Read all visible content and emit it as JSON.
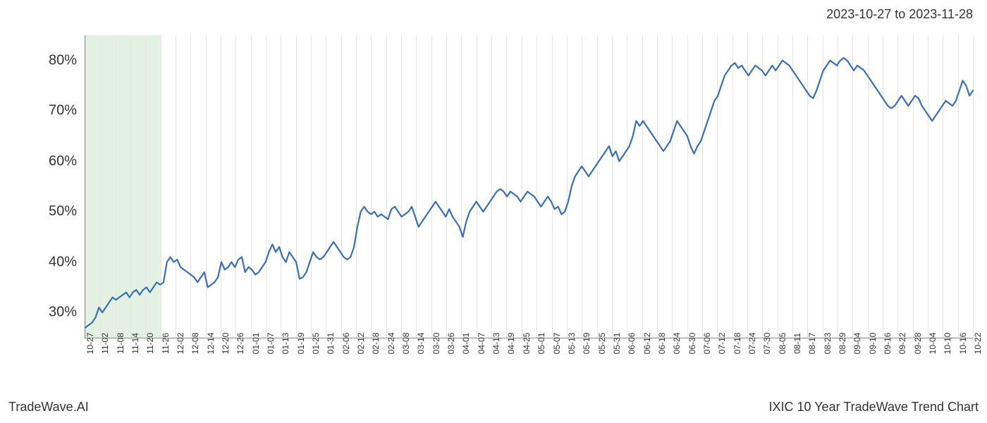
{
  "header": {
    "date_range": "2023-10-27 to 2023-11-28"
  },
  "footer": {
    "left": "TradeWave.AI",
    "right": "IXIC 10 Year TradeWave Trend Chart"
  },
  "chart": {
    "type": "line",
    "background_color": "#ffffff",
    "grid_color": "#e5e5e5",
    "axis_color": "#888888",
    "line_color": "#3a6fb0",
    "line_width": 2.2,
    "highlight_band": {
      "color": "rgba(144,200,144,0.25)",
      "x_start_index": 0,
      "x_end_index": 5
    },
    "ylim": [
      25,
      85
    ],
    "ytick_values": [
      30,
      40,
      50,
      60,
      70,
      80
    ],
    "ytick_labels": [
      "30%",
      "40%",
      "50%",
      "60%",
      "70%",
      "80%"
    ],
    "ytick_fontsize": 20,
    "xtick_labels": [
      "10-27",
      "11-02",
      "11-08",
      "11-14",
      "11-20",
      "11-26",
      "12-02",
      "12-08",
      "12-14",
      "12-20",
      "12-26",
      "01-01",
      "01-07",
      "01-13",
      "01-19",
      "01-25",
      "01-31",
      "02-06",
      "02-12",
      "02-18",
      "02-24",
      "03-08",
      "03-14",
      "03-20",
      "03-26",
      "04-01",
      "04-07",
      "04-13",
      "04-19",
      "04-25",
      "05-01",
      "05-07",
      "05-13",
      "05-19",
      "05-25",
      "05-31",
      "06-06",
      "06-12",
      "06-18",
      "06-24",
      "06-30",
      "07-06",
      "07-12",
      "07-18",
      "07-24",
      "07-30",
      "08-05",
      "08-11",
      "08-17",
      "08-23",
      "08-29",
      "09-04",
      "09-10",
      "09-16",
      "09-22",
      "09-28",
      "10-04",
      "10-10",
      "10-16",
      "10-22"
    ],
    "xtick_fontsize": 12,
    "xtick_rotation": -90,
    "series": {
      "values": [
        27,
        27.5,
        28,
        29,
        31,
        30,
        31,
        32,
        33,
        32.5,
        33,
        33.5,
        34,
        33,
        34,
        34.5,
        33.5,
        34.5,
        35,
        34,
        35,
        36,
        35.5,
        36,
        40,
        41,
        40,
        40.5,
        39,
        38.5,
        38,
        37.5,
        37,
        36,
        37,
        38,
        35,
        35.5,
        36,
        37,
        40,
        38.5,
        39,
        40,
        39,
        40.5,
        41,
        38,
        39,
        38.5,
        37.5,
        38,
        39,
        40,
        42,
        43.5,
        42,
        43,
        41,
        40,
        42,
        41,
        40,
        36.7,
        37,
        38,
        40,
        42,
        41,
        40.5,
        41,
        42,
        43,
        44,
        43,
        42,
        41,
        40.5,
        41,
        43,
        47,
        50,
        51,
        50,
        49.5,
        50,
        49,
        49.5,
        49,
        48.5,
        50.5,
        51,
        50,
        49,
        49.5,
        50,
        51,
        49,
        47,
        48,
        49,
        50,
        51,
        52,
        51,
        50,
        49,
        50.5,
        49,
        48,
        47,
        45,
        48,
        50,
        51,
        52,
        51,
        50,
        51,
        52,
        53,
        54,
        54.5,
        54,
        53,
        54,
        53.5,
        53,
        52,
        53,
        54,
        53.5,
        53,
        52,
        51,
        52,
        53,
        52,
        50.5,
        51,
        49.5,
        50,
        52,
        55,
        57,
        58,
        59,
        58,
        57,
        58,
        59,
        60,
        61,
        62,
        63,
        61,
        62,
        60,
        61,
        62,
        63,
        65,
        68,
        67,
        68,
        67,
        66,
        65,
        64,
        63,
        62,
        63,
        64,
        66,
        68,
        67,
        66,
        65,
        63,
        61.5,
        63,
        64,
        66,
        68,
        70,
        72,
        73,
        75,
        77,
        78,
        79,
        79.5,
        78.5,
        79,
        78,
        77,
        78,
        79,
        78.5,
        78,
        77,
        78,
        79,
        78,
        79,
        80,
        79.5,
        79,
        78,
        77,
        76,
        75,
        74,
        73,
        72.5,
        74,
        76,
        78,
        79,
        80,
        79.5,
        79,
        80,
        80.5,
        80,
        79,
        78,
        79,
        78.5,
        78,
        77,
        76,
        75,
        74,
        73,
        72,
        71,
        70.5,
        71,
        72,
        73,
        72,
        71,
        72,
        73,
        72.5,
        71,
        70,
        69,
        68,
        69,
        70,
        71,
        72,
        71.5,
        71,
        72,
        74,
        76,
        75,
        73,
        74
      ]
    }
  }
}
